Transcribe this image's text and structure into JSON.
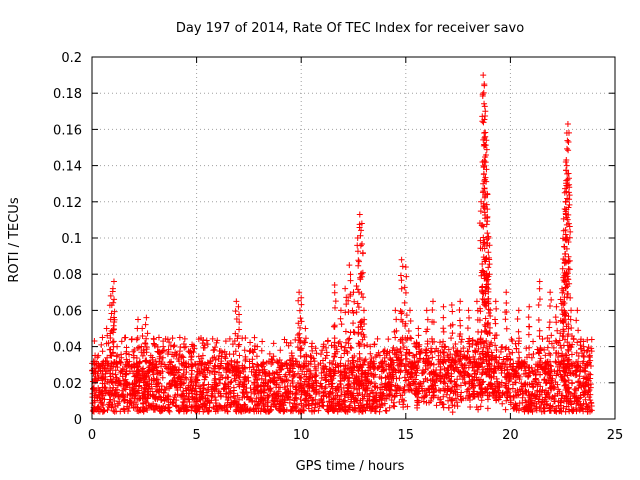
{
  "chart_data": {
    "type": "scatter",
    "title": "Day 197 of 2014, Rate Of TEC Index for receiver savo",
    "xlabel": "GPS time / hours",
    "ylabel": "ROTI / TECUs",
    "xlim": [
      0,
      25
    ],
    "ylim": [
      0,
      0.2
    ],
    "xticks": [
      0,
      5,
      10,
      15,
      20,
      25
    ],
    "xtick_labels": [
      "0",
      "5",
      "10",
      "15",
      "20",
      "25"
    ],
    "yticks": [
      0,
      0.02,
      0.04,
      0.06,
      0.08,
      0.1,
      0.12,
      0.14,
      0.16,
      0.18,
      0.2
    ],
    "ytick_labels": [
      "0",
      "0.02",
      "0.04",
      "0.06",
      "0.08",
      "0.1",
      "0.12",
      "0.14",
      "0.16",
      "0.18",
      "0.2"
    ],
    "grid": true,
    "marker": "+",
    "color": "#ff0000",
    "series": [
      {
        "name": "ROTI",
        "points": [
          [
            0.1,
            0.03
          ],
          [
            0.3,
            0.035
          ],
          [
            0.5,
            0.045
          ],
          [
            0.7,
            0.05
          ],
          [
            0.9,
            0.068
          ],
          [
            1.0,
            0.072
          ],
          [
            1.05,
            0.076
          ],
          [
            1.2,
            0.04
          ],
          [
            1.6,
            0.045
          ],
          [
            2.0,
            0.035
          ],
          [
            2.2,
            0.055
          ],
          [
            2.4,
            0.05
          ],
          [
            2.6,
            0.056
          ],
          [
            3.2,
            0.045
          ],
          [
            3.4,
            0.043
          ],
          [
            3.9,
            0.04
          ],
          [
            4.2,
            0.045
          ],
          [
            4.8,
            0.04
          ],
          [
            5.3,
            0.035
          ],
          [
            5.8,
            0.038
          ],
          [
            6.4,
            0.043
          ],
          [
            6.9,
            0.065
          ],
          [
            7.0,
            0.062
          ],
          [
            7.3,
            0.038
          ],
          [
            7.9,
            0.04
          ],
          [
            8.5,
            0.036
          ],
          [
            9.0,
            0.038
          ],
          [
            9.5,
            0.042
          ],
          [
            9.9,
            0.07
          ],
          [
            10.0,
            0.067
          ],
          [
            10.2,
            0.05
          ],
          [
            10.5,
            0.04
          ],
          [
            11.0,
            0.038
          ],
          [
            11.6,
            0.074
          ],
          [
            11.9,
            0.06
          ],
          [
            12.1,
            0.072
          ],
          [
            12.3,
            0.085
          ],
          [
            12.5,
            0.07
          ],
          [
            12.7,
            0.1
          ],
          [
            12.8,
            0.113
          ],
          [
            12.9,
            0.108
          ],
          [
            13.0,
            0.06
          ],
          [
            13.3,
            0.04
          ],
          [
            14.0,
            0.038
          ],
          [
            14.5,
            0.06
          ],
          [
            14.8,
            0.088
          ],
          [
            15.0,
            0.084
          ],
          [
            15.2,
            0.06
          ],
          [
            15.6,
            0.05
          ],
          [
            16.0,
            0.06
          ],
          [
            16.3,
            0.065
          ],
          [
            16.8,
            0.062
          ],
          [
            17.2,
            0.063
          ],
          [
            17.6,
            0.065
          ],
          [
            18.0,
            0.06
          ],
          [
            18.4,
            0.065
          ],
          [
            18.6,
            0.12
          ],
          [
            18.7,
            0.19
          ],
          [
            18.75,
            0.185
          ],
          [
            18.8,
            0.17
          ],
          [
            18.85,
            0.154
          ],
          [
            18.9,
            0.124
          ],
          [
            18.95,
            0.1
          ],
          [
            19.0,
            0.08
          ],
          [
            19.3,
            0.065
          ],
          [
            19.8,
            0.07
          ],
          [
            20.4,
            0.06
          ],
          [
            20.9,
            0.062
          ],
          [
            21.4,
            0.076
          ],
          [
            21.9,
            0.07
          ],
          [
            22.2,
            0.062
          ],
          [
            22.4,
            0.066
          ],
          [
            22.5,
            0.083
          ],
          [
            22.55,
            0.104
          ],
          [
            22.6,
            0.125
          ],
          [
            22.65,
            0.142
          ],
          [
            22.7,
            0.158
          ],
          [
            22.75,
            0.163
          ],
          [
            22.8,
            0.133
          ],
          [
            22.9,
            0.06
          ],
          [
            23.2,
            0.06
          ],
          [
            23.5,
            0.04
          ],
          [
            23.8,
            0.035
          ]
        ],
        "band_note": "dense cloud of points between 0.005 and 0.03 across 0-24 h"
      }
    ]
  }
}
